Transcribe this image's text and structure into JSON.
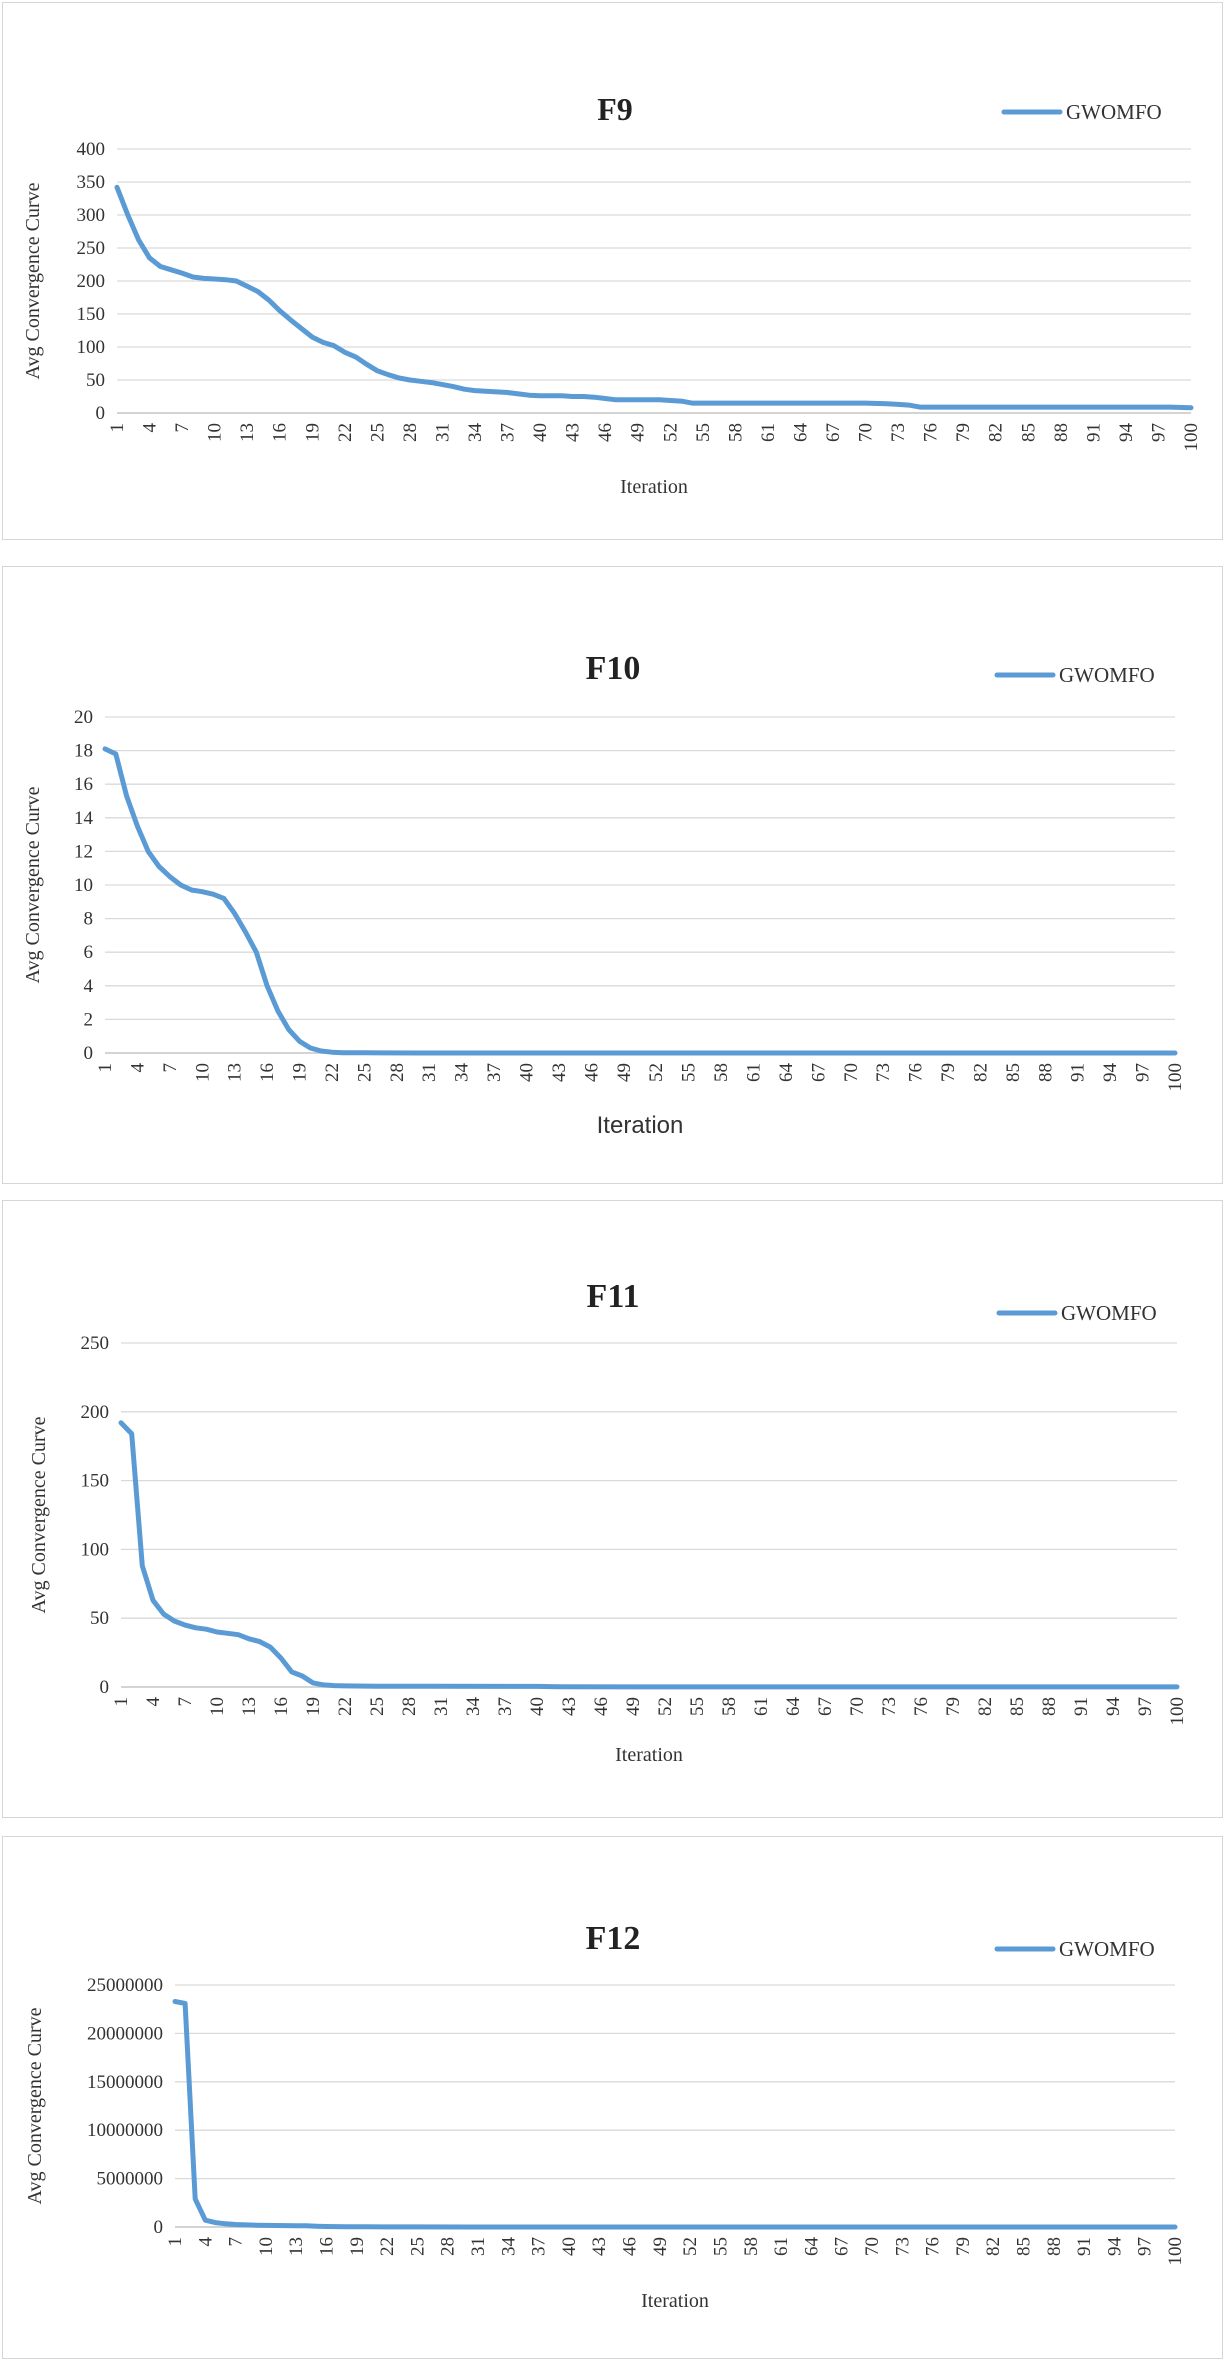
{
  "chart_data": [
    {
      "type": "line",
      "title": "F9",
      "xlabel": "Iteration",
      "ylabel": "Avg Convergence Curve",
      "ylim": [
        0,
        400
      ],
      "yticks": [
        "0",
        "50",
        "100",
        "150",
        "200",
        "250",
        "300",
        "350",
        "400"
      ],
      "xticks": [
        "1",
        "4",
        "7",
        "10",
        "13",
        "16",
        "19",
        "22",
        "25",
        "28",
        "31",
        "34",
        "37",
        "40",
        "43",
        "46",
        "49",
        "52",
        "55",
        "58",
        "61",
        "64",
        "67",
        "70",
        "73",
        "76",
        "79",
        "82",
        "85",
        "88",
        "91",
        "94",
        "97",
        "100"
      ],
      "xlim": [
        1,
        100
      ],
      "grid": true,
      "legend": "top-right",
      "color": "#5b9bd5",
      "series": [
        {
          "name": "GWOMFO",
          "x": [
            1,
            2,
            3,
            4,
            5,
            6,
            7,
            8,
            9,
            10,
            11,
            12,
            13,
            14,
            15,
            16,
            17,
            18,
            19,
            20,
            21,
            22,
            23,
            24,
            25,
            26,
            27,
            28,
            29,
            30,
            31,
            32,
            33,
            34,
            35,
            36,
            37,
            38,
            39,
            40,
            41,
            42,
            43,
            44,
            45,
            46,
            47,
            48,
            49,
            50,
            51,
            52,
            53,
            54,
            55,
            60,
            65,
            70,
            72,
            73,
            74,
            75,
            80,
            85,
            90,
            95,
            98,
            100
          ],
          "values": [
            342,
            300,
            262,
            235,
            222,
            217,
            212,
            206,
            204,
            203,
            202,
            200,
            192,
            184,
            171,
            155,
            141,
            128,
            115,
            107,
            102,
            92,
            85,
            74,
            64,
            58,
            53,
            50,
            48,
            46,
            43,
            40,
            36,
            34,
            33,
            32,
            31,
            29,
            27,
            26,
            26,
            26,
            25,
            25,
            24,
            22,
            20,
            20,
            20,
            20,
            20,
            19,
            18,
            15,
            15,
            15,
            15,
            15,
            14,
            13,
            12,
            9,
            9,
            9,
            9,
            9,
            9,
            8
          ]
        }
      ]
    },
    {
      "type": "line",
      "title": "F10",
      "xlabel": "Iteration",
      "ylabel": "Avg Convergence Curve",
      "ylim": [
        0,
        20
      ],
      "yticks": [
        "0",
        "2",
        "4",
        "6",
        "8",
        "10",
        "12",
        "14",
        "16",
        "18",
        "20"
      ],
      "xticks": [
        "1",
        "4",
        "7",
        "10",
        "13",
        "16",
        "19",
        "22",
        "25",
        "28",
        "31",
        "34",
        "37",
        "40",
        "43",
        "46",
        "49",
        "52",
        "55",
        "58",
        "61",
        "64",
        "67",
        "70",
        "73",
        "76",
        "79",
        "82",
        "85",
        "88",
        "91",
        "94",
        "97",
        "100"
      ],
      "xlim": [
        1,
        100
      ],
      "grid": true,
      "legend": "top-right",
      "color": "#5b9bd5",
      "series": [
        {
          "name": "GWOMFO",
          "x": [
            1,
            2,
            3,
            4,
            5,
            6,
            7,
            8,
            9,
            10,
            11,
            12,
            13,
            14,
            15,
            16,
            17,
            18,
            19,
            20,
            21,
            22,
            23,
            25,
            30,
            100
          ],
          "values": [
            18.1,
            17.8,
            15.3,
            13.5,
            12.0,
            11.1,
            10.5,
            10.0,
            9.7,
            9.6,
            9.45,
            9.2,
            8.3,
            7.2,
            6.0,
            4.0,
            2.5,
            1.4,
            0.7,
            0.3,
            0.12,
            0.05,
            0.02,
            0.01,
            0,
            0
          ]
        }
      ]
    },
    {
      "type": "line",
      "title": "F11",
      "xlabel": "Iteration",
      "ylabel": "Avg Convergence Curve",
      "ylim": [
        0,
        250
      ],
      "yticks": [
        "0",
        "50",
        "100",
        "150",
        "200",
        "250"
      ],
      "xticks": [
        "1",
        "4",
        "7",
        "10",
        "13",
        "16",
        "19",
        "22",
        "25",
        "28",
        "31",
        "34",
        "37",
        "40",
        "43",
        "46",
        "49",
        "52",
        "55",
        "58",
        "61",
        "64",
        "67",
        "70",
        "73",
        "76",
        "79",
        "82",
        "85",
        "88",
        "91",
        "94",
        "97",
        "100"
      ],
      "xlim": [
        1,
        100
      ],
      "grid": true,
      "legend": "top-right",
      "color": "#5b9bd5",
      "series": [
        {
          "name": "GWOMFO",
          "x": [
            1,
            2,
            3,
            4,
            5,
            6,
            7,
            8,
            9,
            10,
            11,
            12,
            13,
            14,
            15,
            16,
            17,
            18,
            19,
            20,
            21,
            22,
            25,
            30,
            40,
            42,
            50,
            100
          ],
          "values": [
            192,
            184,
            88,
            63,
            53,
            48,
            45,
            43,
            42,
            40,
            39,
            38,
            35,
            33,
            29,
            21,
            11,
            8,
            3,
            1.5,
            1,
            0.8,
            0.6,
            0.5,
            0.4,
            0.2,
            0.1,
            0.1
          ]
        }
      ]
    },
    {
      "type": "line",
      "title": "F12",
      "xlabel": "Iteration",
      "ylabel": "Avg Convergence Curve",
      "ylim": [
        0,
        25000000
      ],
      "yticks": [
        "0",
        "5000000",
        "10000000",
        "15000000",
        "20000000",
        "25000000"
      ],
      "xticks": [
        "1",
        "4",
        "7",
        "10",
        "13",
        "16",
        "19",
        "22",
        "25",
        "28",
        "31",
        "34",
        "37",
        "40",
        "43",
        "46",
        "49",
        "52",
        "55",
        "58",
        "61",
        "64",
        "67",
        "70",
        "73",
        "76",
        "79",
        "82",
        "85",
        "88",
        "91",
        "94",
        "97",
        "100"
      ],
      "xlim": [
        1,
        100
      ],
      "grid": true,
      "legend": "top-right",
      "color": "#5b9bd5",
      "series": [
        {
          "name": "GWOMFO",
          "x": [
            1,
            2,
            3,
            4,
            5,
            6,
            7,
            8,
            9,
            10,
            11,
            12,
            13,
            14,
            15,
            16,
            17,
            18,
            20,
            25,
            30,
            100
          ],
          "values": [
            23300000,
            23100000,
            2900000,
            700000,
            450000,
            330000,
            260000,
            220000,
            190000,
            170000,
            150000,
            140000,
            130000,
            120000,
            80000,
            50000,
            40000,
            30000,
            20000,
            10000,
            5000,
            5000
          ]
        }
      ]
    }
  ]
}
